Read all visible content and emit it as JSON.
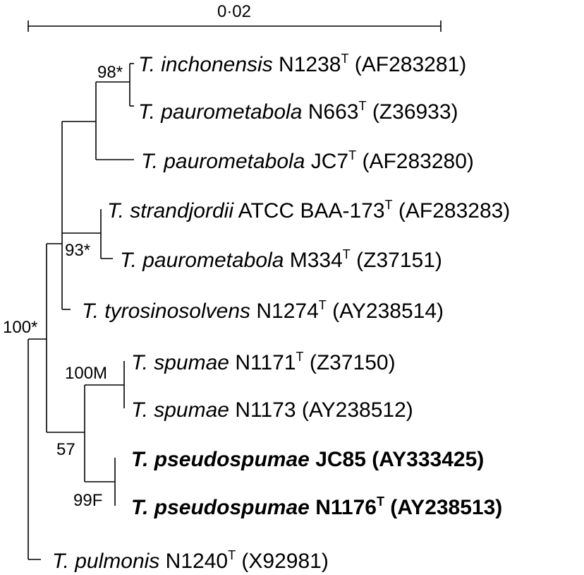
{
  "scale_bar": {
    "label": "0·02"
  },
  "taxa": [
    {
      "genus": "T.",
      "species": "inchonensis",
      "strain": "N1238",
      "type": "T",
      "accession": "(AF283281)",
      "bold": false
    },
    {
      "genus": "T.",
      "species": "paurometabola",
      "strain": "N663",
      "type": "T",
      "accession": "(Z36933)",
      "bold": false
    },
    {
      "genus": "T.",
      "species": "paurometabola",
      "strain": "JC7",
      "type": "T",
      "accession": "(AF283280)",
      "bold": false
    },
    {
      "genus": "T.",
      "species": "strandjordii",
      "strain": "ATCC BAA-173",
      "type": "T",
      "accession": "(AF283283)",
      "bold": false
    },
    {
      "genus": "T.",
      "species": "paurometabola",
      "strain": "M334",
      "type": "T",
      "accession": "(Z37151)",
      "bold": false
    },
    {
      "genus": "T.",
      "species": "tyrosinosolvens",
      "strain": "N1274",
      "type": "T",
      "accession": "(AY238514)",
      "bold": false
    },
    {
      "genus": "T.",
      "species": "spumae",
      "strain": "N1171",
      "type": "T",
      "accession": "(Z37150)",
      "bold": false
    },
    {
      "genus": "T.",
      "species": "spumae",
      "strain": "N1173",
      "type": "",
      "accession": "(AY238512)",
      "bold": false
    },
    {
      "genus": "T.",
      "species": "pseudospumae",
      "strain": "JC85",
      "type": "",
      "accession": "(AY333425)",
      "bold": true
    },
    {
      "genus": "T.",
      "species": "pseudospumae",
      "strain": "N1176",
      "type": "T",
      "accession": "(AY238513)",
      "bold": true
    },
    {
      "genus": "T.",
      "species": "pulmonis",
      "strain": "N1240",
      "type": "T",
      "accession": "(X92981)",
      "bold": false
    }
  ],
  "bootstrap": [
    "98*",
    "93*",
    "100*",
    "100M",
    "57",
    "99F"
  ]
}
